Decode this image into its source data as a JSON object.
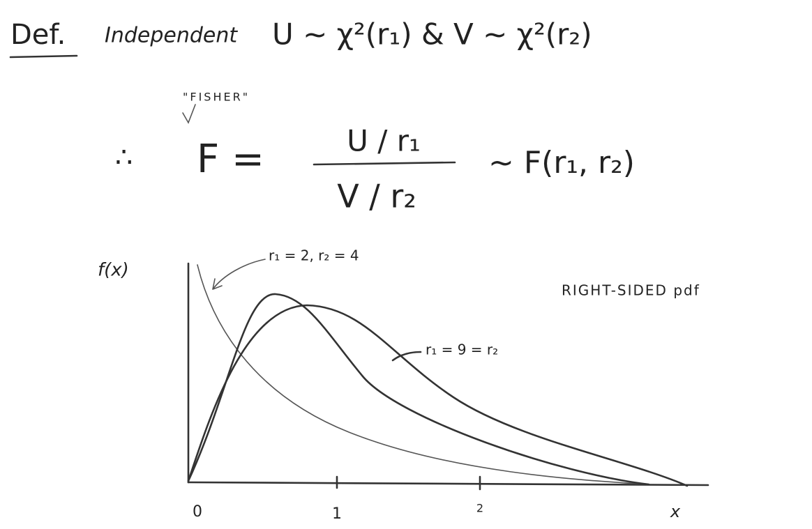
{
  "header": {
    "label": "Def.",
    "text": "Independent",
    "formula": "U ~ χ²(r₁)  &  V ~ χ²(r₂)"
  },
  "definition": {
    "annotation": "\"FISHER\"",
    "therefore": "∴",
    "lhs": "F =",
    "numerator": "U / r₁",
    "denominator": "V / r₂",
    "rhs": "~ F(r₁, r₂)"
  },
  "graph": {
    "y_label": "f(x)",
    "x_label": "x",
    "x_ticks": [
      0,
      1,
      2
    ],
    "curve_labels": [
      "r₁ = 2, r₂ = 4",
      "r₁ = 9 = r₂"
    ],
    "note": "RIGHT-SIDED pdf"
  }
}
